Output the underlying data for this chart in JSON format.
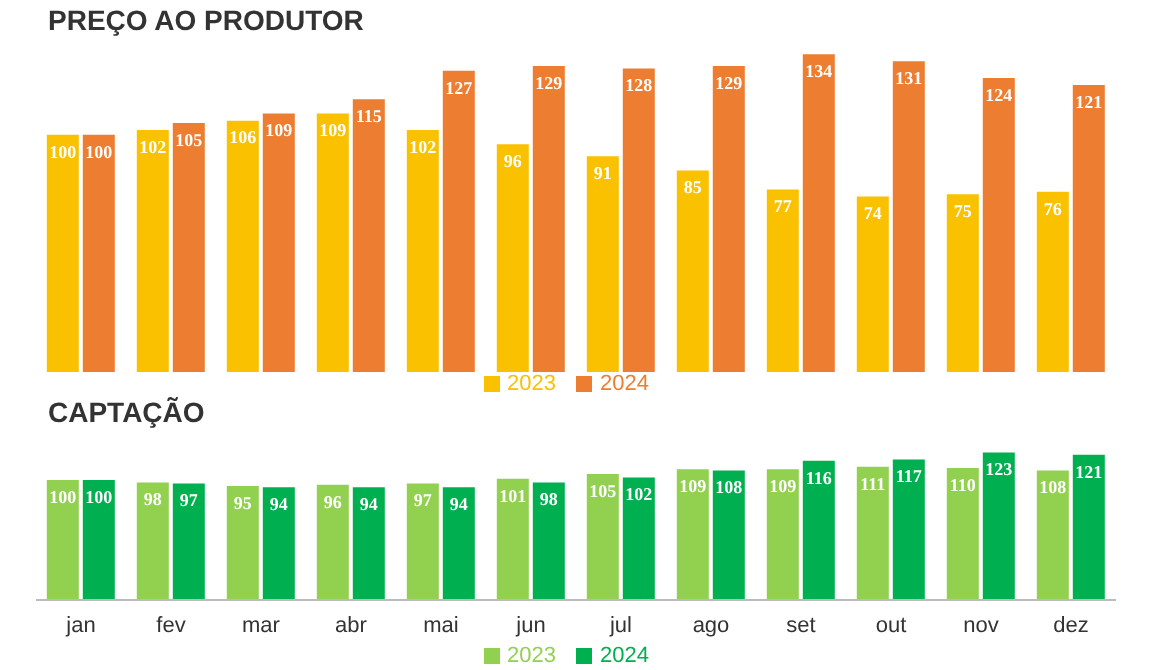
{
  "chart_data": [
    {
      "type": "bar",
      "title": "PREÇO AO PRODUTOR",
      "categories": [
        null,
        null,
        null,
        null,
        null,
        null,
        null,
        null,
        null,
        null,
        null,
        null
      ],
      "tick_labels": false,
      "data_labels": true,
      "legend": "bottom",
      "series": [
        {
          "name": "2023",
          "color": "#fac100",
          "values": [
            100,
            102,
            106,
            109,
            102,
            96,
            91,
            85,
            77,
            74,
            75,
            76
          ]
        },
        {
          "name": "2024",
          "color": "#ed7d31",
          "values": [
            100,
            105,
            109,
            115,
            127,
            129,
            128,
            129,
            134,
            131,
            124,
            121
          ]
        }
      ]
    },
    {
      "type": "bar",
      "title": "CAPTAÇÃO",
      "categories": [
        "jan",
        "fev",
        "mar",
        "abr",
        "mai",
        "jun",
        "jul",
        "ago",
        "set",
        "out",
        "nov",
        "dez"
      ],
      "tick_labels": "x",
      "data_labels": true,
      "legend": "bottom",
      "series": [
        {
          "name": "2023",
          "color": "#92d050",
          "values": [
            100,
            98,
            95,
            96,
            97,
            101,
            105,
            109,
            109,
            111,
            110,
            108
          ]
        },
        {
          "name": "2024",
          "color": "#00b050",
          "values": [
            100,
            97,
            94,
            94,
            94,
            98,
            102,
            108,
            116,
            117,
            123,
            121
          ]
        }
      ]
    }
  ]
}
